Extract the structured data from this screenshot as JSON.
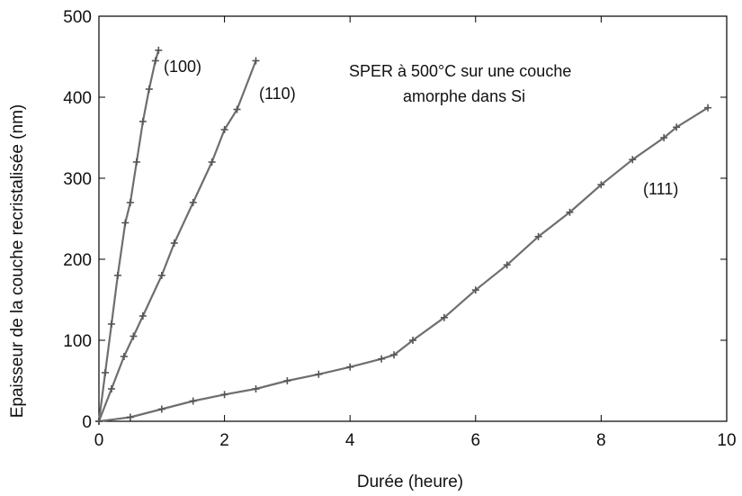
{
  "chart_data": {
    "type": "line",
    "title": "",
    "xlabel": "Durée (heure)",
    "ylabel": "Epaisseur de la couche recristalisée (nm)",
    "xlim": [
      0,
      10
    ],
    "ylim": [
      0,
      500
    ],
    "xticks": [
      "0",
      "2",
      "4",
      "6",
      "8",
      "10"
    ],
    "yticks": [
      "0",
      "100",
      "200",
      "300",
      "400",
      "500"
    ],
    "grid": false,
    "annotation_lines": [
      "SPER à 500°C sur une couche",
      "amorphe dans Si"
    ],
    "colors": {
      "line": "#6e6e6e",
      "marker": "#555555",
      "frame": "#000000"
    },
    "series": [
      {
        "name": "(100)",
        "x": [
          0,
          0.1,
          0.2,
          0.3,
          0.42,
          0.5,
          0.6,
          0.7,
          0.8,
          0.9,
          0.95
        ],
        "y": [
          0,
          60,
          120,
          180,
          245,
          270,
          320,
          370,
          410,
          445,
          458
        ]
      },
      {
        "name": "(110)",
        "x": [
          0,
          0.2,
          0.4,
          0.55,
          0.7,
          1.0,
          1.2,
          1.5,
          1.8,
          2.0,
          2.2,
          2.5
        ],
        "y": [
          0,
          40,
          80,
          105,
          130,
          180,
          220,
          270,
          320,
          360,
          385,
          445
        ]
      },
      {
        "name": "(111)",
        "x": [
          0,
          0.5,
          1.0,
          1.5,
          2.0,
          2.5,
          3.0,
          3.5,
          4.0,
          4.5,
          4.7,
          5.0,
          5.5,
          6.0,
          6.5,
          7.0,
          7.5,
          8.0,
          8.5,
          9.0,
          9.2,
          9.7
        ],
        "y": [
          0,
          5,
          15,
          25,
          33,
          40,
          50,
          58,
          67,
          77,
          82,
          100,
          128,
          162,
          193,
          228,
          258,
          292,
          323,
          350,
          363,
          387
        ]
      }
    ]
  }
}
